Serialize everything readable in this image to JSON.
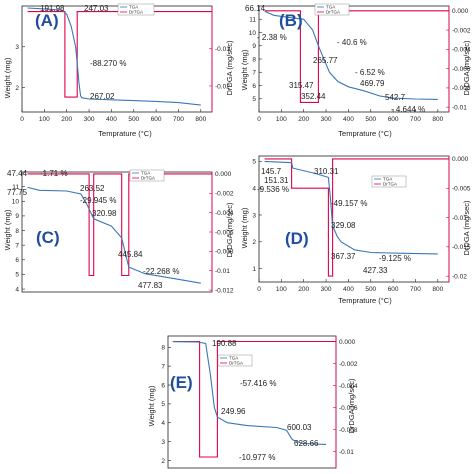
{
  "chart_data": [
    {
      "id": "A",
      "type": "line",
      "panel_label": "(A)",
      "xlabel": "Temprature (°C)",
      "ylabel": "Weight (mg)",
      "y2label": "DrDGA (mg/sec)",
      "legend": [
        "TGA",
        "DrTGA"
      ],
      "xlim": [
        0,
        850
      ],
      "ylim": [
        1.4,
        4.0
      ],
      "y2lim": [
        -0.027,
        0.0015
      ],
      "xticks": [
        0,
        100,
        200,
        300,
        400,
        500,
        600,
        700,
        800
      ],
      "yticks": [
        2,
        3
      ],
      "y2ticks": [
        -0.01,
        -0.02
      ],
      "annotations": [
        "191.98",
        "247.03",
        "-88.270 %",
        "267.02"
      ],
      "tga": [
        [
          25,
          3.95
        ],
        [
          100,
          3.93
        ],
        [
          180,
          3.9
        ],
        [
          200,
          3.8
        ],
        [
          220,
          3.5
        ],
        [
          240,
          3.0
        ],
        [
          247,
          2.6
        ],
        [
          255,
          2.1
        ],
        [
          262,
          1.8
        ],
        [
          267,
          1.75
        ],
        [
          300,
          1.72
        ],
        [
          400,
          1.7
        ],
        [
          600,
          1.66
        ],
        [
          700,
          1.63
        ],
        [
          800,
          1.57
        ]
      ],
      "dtga": [
        [
          25,
          0
        ],
        [
          191.98,
          0
        ],
        [
          191.98,
          -0.023
        ],
        [
          247.03,
          -0.023
        ],
        [
          247.03,
          0
        ],
        [
          850,
          0
        ]
      ]
    },
    {
      "id": "B",
      "type": "line",
      "panel_label": "(B)",
      "xlabel": "Temprature (°C)",
      "ylabel": "Weight (mg)",
      "y2label": "DrDGA (mg/sec)",
      "legend": [
        "TGA",
        "DrTGA"
      ],
      "xlim": [
        0,
        850
      ],
      "ylim": [
        4,
        12
      ],
      "y2lim": [
        -0.0105,
        0.0005
      ],
      "xticks": [
        0,
        100,
        200,
        300,
        400,
        500,
        600,
        700,
        800
      ],
      "yticks": [
        5,
        6,
        7,
        8,
        9,
        10,
        11
      ],
      "y2ticks": [
        0.0,
        -0.002,
        -0.004,
        -0.006,
        -0.008,
        -0.01
      ],
      "annotations": [
        "66.14",
        "- 2.38 %",
        "- 40.6 %",
        "265.77",
        "- 6.52 %",
        "469.79",
        "315.47",
        "352.44",
        "542.7",
        "- 4.644 %"
      ],
      "tga": [
        [
          25,
          11.6
        ],
        [
          66.14,
          11.3
        ],
        [
          150,
          11.1
        ],
        [
          200,
          11.0
        ],
        [
          240,
          10.2
        ],
        [
          265.77,
          9.0
        ],
        [
          300,
          7.6
        ],
        [
          315.47,
          7.0
        ],
        [
          352.44,
          6.3
        ],
        [
          400,
          5.9
        ],
        [
          469.79,
          5.6
        ],
        [
          542.7,
          5.2
        ],
        [
          600,
          5.05
        ],
        [
          700,
          4.98
        ],
        [
          800,
          4.95
        ]
      ],
      "dtga": [
        [
          25,
          0
        ],
        [
          185,
          0
        ],
        [
          185,
          -0.0095
        ],
        [
          265.77,
          -0.0095
        ],
        [
          265.77,
          0
        ],
        [
          850,
          0
        ]
      ]
    },
    {
      "id": "C",
      "type": "line",
      "panel_label": "(C)",
      "xlabel": "",
      "ylabel": "Weight (mg)",
      "y2label": "DrDGA (mg/sec)",
      "legend": [
        "TGA",
        "DrTGA"
      ],
      "xlim": [
        0,
        850
      ],
      "ylim": [
        3.8,
        12.0
      ],
      "y2lim": [
        -0.0122,
        0.0002
      ],
      "xticks": [],
      "yticks": [
        4,
        5,
        6,
        7,
        8,
        9,
        10,
        11
      ],
      "y2ticks": [
        0.0,
        -0.002,
        -0.004,
        -0.006,
        -0.008,
        -0.01,
        -0.012
      ],
      "annotations": [
        "47.44",
        "-1.71 %",
        "77.75",
        "263.52",
        "-29.945 %",
        "320.98",
        "445.84",
        "-22.268 %",
        "477.83"
      ],
      "tga": [
        [
          25,
          10.95
        ],
        [
          77.75,
          10.75
        ],
        [
          200,
          10.7
        ],
        [
          263.52,
          10.5
        ],
        [
          290,
          9.8
        ],
        [
          320.98,
          8.8
        ],
        [
          400,
          8.3
        ],
        [
          445.84,
          7.5
        ],
        [
          460,
          6.6
        ],
        [
          477.83,
          5.5
        ],
        [
          550,
          5.05
        ],
        [
          650,
          4.8
        ],
        [
          800,
          4.4
        ]
      ],
      "dtga": [
        [
          25,
          0
        ],
        [
          300,
          0
        ],
        [
          300,
          -0.0105
        ],
        [
          320.98,
          -0.0105
        ],
        [
          320.98,
          0
        ],
        [
          445.84,
          0
        ],
        [
          445.84,
          -0.0105
        ],
        [
          477.83,
          -0.0105
        ],
        [
          477.83,
          0
        ],
        [
          850,
          0
        ]
      ]
    },
    {
      "id": "D",
      "type": "line",
      "panel_label": "(D)",
      "xlabel": "Temprature (°C)",
      "ylabel": "Weight (mg)",
      "y2label": "DrDGA (mg/sec)",
      "legend": [
        "TGA",
        "DrTGA"
      ],
      "xlim": [
        0,
        850
      ],
      "ylim": [
        0.5,
        5.2
      ],
      "y2lim": [
        -0.021,
        0.0005
      ],
      "xticks": [
        0,
        100,
        200,
        300,
        400,
        500,
        600,
        700,
        800
      ],
      "yticks": [
        1,
        2,
        3,
        4,
        5
      ],
      "y2ticks": [
        0.0,
        -0.005,
        -0.01,
        -0.015,
        -0.02
      ],
      "annotations": [
        "145.7",
        "151.31",
        "-9.536 %",
        "310.31",
        "-49.157 %",
        "329.08",
        "367.37",
        "-9.125 %",
        "427.33"
      ],
      "tga": [
        [
          25,
          5.0
        ],
        [
          145.7,
          4.95
        ],
        [
          151.31,
          4.75
        ],
        [
          250,
          4.55
        ],
        [
          310.31,
          4.4
        ],
        [
          320,
          3.6
        ],
        [
          329.08,
          2.6
        ],
        [
          350,
          2.2
        ],
        [
          367.37,
          2.0
        ],
        [
          427.33,
          1.7
        ],
        [
          500,
          1.6
        ],
        [
          650,
          1.57
        ],
        [
          800,
          1.55
        ]
      ],
      "dtga": [
        [
          25,
          0
        ],
        [
          145.7,
          0
        ],
        [
          145.7,
          -0.005
        ],
        [
          310.31,
          -0.005
        ],
        [
          310.31,
          -0.02
        ],
        [
          329.08,
          -0.02
        ],
        [
          329.08,
          0
        ],
        [
          850,
          0
        ]
      ]
    },
    {
      "id": "E",
      "type": "line",
      "panel_label": "(E)",
      "xlabel": "",
      "ylabel": "Weight (mg)",
      "y2label": "DrDGA (mg/sec)",
      "legend": [
        "TGA",
        "DrTGA"
      ],
      "xlim": [
        0,
        850
      ],
      "ylim": [
        1.6,
        8.6
      ],
      "y2lim": [
        -0.0115,
        0.0005
      ],
      "xticks": [],
      "yticks": [
        2,
        3,
        4,
        5,
        6,
        7,
        8
      ],
      "y2ticks": [
        0.0,
        -0.002,
        -0.004,
        -0.006,
        -0.008,
        -0.01
      ],
      "annotations": [
        "190.88",
        "-57.416 %",
        "249.96",
        "600.03",
        "628.66",
        "-10.977 %"
      ],
      "tga": [
        [
          25,
          8.3
        ],
        [
          150,
          8.28
        ],
        [
          190.88,
          8.2
        ],
        [
          215,
          6.5
        ],
        [
          235,
          4.8
        ],
        [
          249.96,
          4.3
        ],
        [
          300,
          4.0
        ],
        [
          400,
          3.85
        ],
        [
          550,
          3.75
        ],
        [
          600.03,
          3.6
        ],
        [
          628.66,
          3.1
        ],
        [
          680,
          2.9
        ],
        [
          800,
          2.85
        ]
      ],
      "dtga": [
        [
          25,
          0
        ],
        [
          160,
          0
        ],
        [
          160,
          -0.0105
        ],
        [
          249.96,
          -0.0105
        ],
        [
          249.96,
          0
        ],
        [
          850,
          0
        ]
      ]
    }
  ]
}
